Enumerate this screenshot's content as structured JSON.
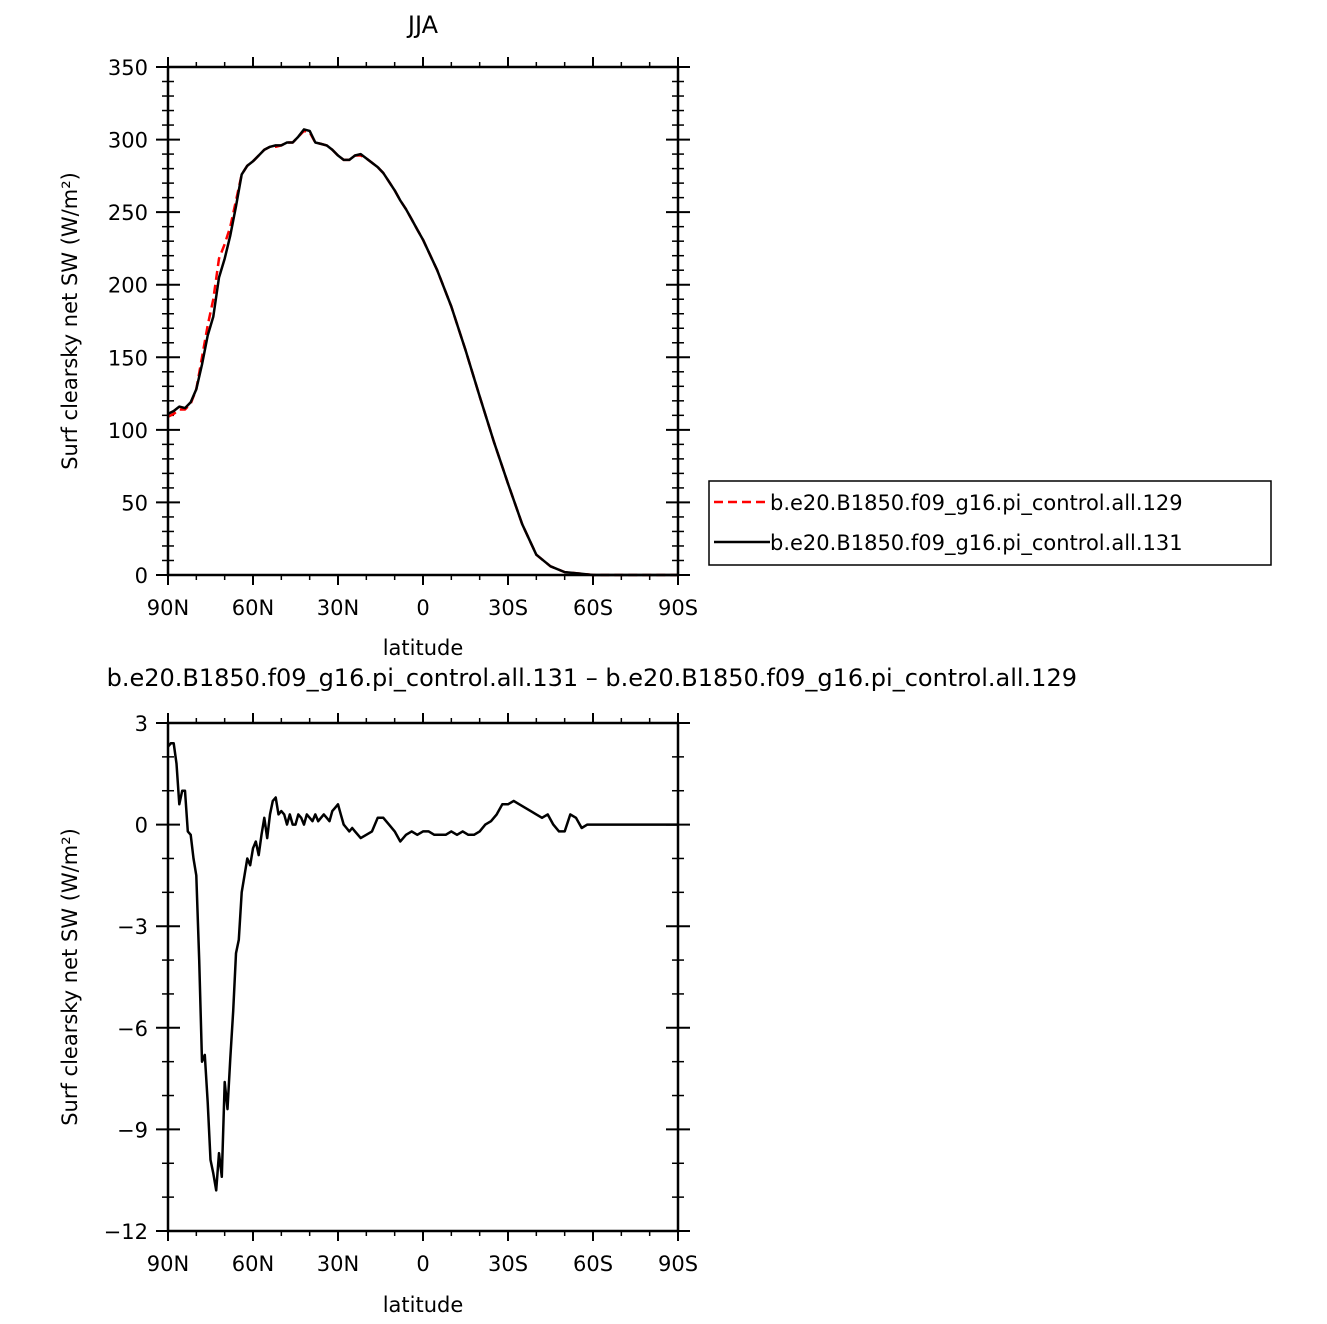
{
  "chart_data": [
    {
      "type": "line",
      "title": "JJA",
      "xlabel": "latitude",
      "ylabel": "Surf clearsky net SW (W/m²)",
      "xlim": [
        90,
        -90
      ],
      "ylim": [
        0,
        350
      ],
      "xticks": [
        90,
        60,
        30,
        0,
        -30,
        -60,
        -90
      ],
      "xtick_labels": [
        "90N",
        "60N",
        "30N",
        "0",
        "30S",
        "60S",
        "90S"
      ],
      "yticks": [
        0,
        50,
        100,
        150,
        200,
        250,
        300,
        350
      ],
      "ytick_labels": [
        "0",
        "50",
        "100",
        "150",
        "200",
        "250",
        "300",
        "350"
      ],
      "legend": "right",
      "series": [
        {
          "name": "b.e20.B1850.f09_g16.pi_control.all.129",
          "color": "#ff0000",
          "style": "dashed",
          "x": [
            90,
            88,
            86,
            84,
            82,
            80,
            78,
            76,
            74,
            72,
            70,
            68,
            66,
            64,
            62,
            60,
            58,
            56,
            54,
            52,
            50,
            48,
            46,
            44,
            42,
            40,
            38,
            36,
            34,
            32,
            30,
            28,
            26,
            24,
            22,
            20,
            18,
            16,
            14,
            12,
            10,
            8,
            6,
            4,
            2,
            0,
            -5,
            -10,
            -15,
            -20,
            -25,
            -30,
            -35,
            -40,
            -45,
            -50,
            -55,
            -60,
            -62,
            -64,
            -66,
            -68,
            -70,
            -75,
            -80,
            -85,
            -90
          ],
          "values": [
            109,
            111,
            114,
            114,
            118,
            128,
            150,
            172,
            190,
            218,
            228,
            240,
            258,
            276,
            282,
            285,
            289,
            293,
            295,
            295,
            296,
            298,
            298,
            302,
            306,
            305,
            298,
            297,
            296,
            293,
            289,
            286,
            286,
            289,
            289,
            287,
            284,
            281,
            277,
            271,
            265,
            258,
            252,
            245,
            238,
            231,
            210,
            185,
            155,
            123,
            92,
            63,
            35,
            14,
            6,
            2,
            1,
            0,
            0,
            0,
            0,
            0,
            0,
            0,
            0,
            0,
            0
          ]
        },
        {
          "name": "b.e20.B1850.f09_g16.pi_control.all.131",
          "color": "#000000",
          "style": "solid",
          "x": [
            90,
            88,
            86,
            84,
            82,
            80,
            78,
            76,
            74,
            72,
            70,
            68,
            66,
            64,
            62,
            60,
            58,
            56,
            54,
            52,
            50,
            48,
            46,
            44,
            42,
            40,
            38,
            36,
            34,
            32,
            30,
            28,
            26,
            24,
            22,
            20,
            18,
            16,
            14,
            12,
            10,
            8,
            6,
            4,
            2,
            0,
            -5,
            -10,
            -15,
            -20,
            -25,
            -30,
            -35,
            -40,
            -45,
            -50,
            -55,
            -60,
            -62,
            -64,
            -66,
            -68,
            -70,
            -75,
            -80,
            -85,
            -90
          ],
          "values": [
            111,
            113,
            116,
            115,
            119,
            128,
            145,
            165,
            178,
            205,
            218,
            234,
            254,
            276,
            282,
            285,
            289,
            293,
            295,
            296,
            296,
            298,
            298,
            302,
            307,
            306,
            298,
            297,
            296,
            293,
            289,
            286,
            286,
            289,
            290,
            287,
            284,
            281,
            277,
            271,
            265,
            258,
            252,
            245,
            238,
            231,
            210,
            185,
            155,
            123,
            92,
            63,
            35,
            14,
            6,
            2,
            1,
            0,
            0,
            0,
            0,
            0,
            0,
            0,
            0,
            0,
            0
          ]
        }
      ]
    },
    {
      "type": "line",
      "title": "b.e20.B1850.f09_g16.pi_control.all.131 – b.e20.B1850.f09_g16.pi_control.all.129",
      "xlabel": "latitude",
      "ylabel": "Surf clearsky net SW (W/m²)",
      "xlim": [
        90,
        -90
      ],
      "ylim": [
        -12,
        3
      ],
      "xticks": [
        90,
        60,
        30,
        0,
        -30,
        -60,
        -90
      ],
      "xtick_labels": [
        "90N",
        "60N",
        "30N",
        "0",
        "30S",
        "60S",
        "90S"
      ],
      "yticks": [
        -12,
        -9,
        -6,
        -3,
        0,
        3
      ],
      "ytick_labels": [
        "−12",
        "−9",
        "−6",
        "−3",
        "0",
        "3"
      ],
      "series": [
        {
          "color": "#000000",
          "style": "solid",
          "x": [
            90,
            89,
            88,
            87,
            86,
            85,
            84,
            83,
            82,
            81,
            80,
            79,
            78,
            77,
            76,
            75,
            74,
            73,
            72,
            71,
            70,
            69,
            68,
            67,
            66,
            65,
            64,
            63,
            62,
            61,
            60,
            59,
            58,
            57,
            56,
            55,
            54,
            53,
            52,
            51,
            50,
            49,
            48,
            47,
            46,
            45,
            44,
            43,
            42,
            41,
            40,
            39,
            38,
            37,
            36,
            35,
            34,
            33,
            32,
            31,
            30,
            29,
            28,
            27,
            26,
            25,
            24,
            22,
            20,
            18,
            16,
            14,
            12,
            10,
            8,
            6,
            4,
            2,
            0,
            -2,
            -4,
            -6,
            -8,
            -10,
            -12,
            -14,
            -16,
            -18,
            -20,
            -22,
            -24,
            -26,
            -28,
            -30,
            -32,
            -34,
            -36,
            -38,
            -40,
            -42,
            -44,
            -46,
            -48,
            -50,
            -52,
            -54,
            -56,
            -58,
            -60,
            -62,
            -63,
            -64,
            -66,
            -68,
            -70,
            -75,
            -80,
            -85,
            -90
          ],
          "values": [
            2.3,
            2.4,
            2.4,
            1.8,
            0.6,
            1.0,
            1.0,
            -0.2,
            -0.3,
            -1.0,
            -1.5,
            -4.0,
            -7.0,
            -6.8,
            -8.2,
            -9.9,
            -10.3,
            -10.8,
            -9.7,
            -10.4,
            -7.6,
            -8.4,
            -6.9,
            -5.5,
            -3.8,
            -3.4,
            -2.0,
            -1.5,
            -1.0,
            -1.2,
            -0.7,
            -0.5,
            -0.9,
            -0.3,
            0.2,
            -0.4,
            0.3,
            0.7,
            0.8,
            0.3,
            0.4,
            0.3,
            0.0,
            0.3,
            0.0,
            0.0,
            0.3,
            0.2,
            0.0,
            0.3,
            0.2,
            0.1,
            0.3,
            0.1,
            0.2,
            0.3,
            0.2,
            0.1,
            0.4,
            0.5,
            0.6,
            0.3,
            0.0,
            -0.1,
            -0.2,
            -0.1,
            -0.2,
            -0.4,
            -0.3,
            -0.2,
            0.2,
            0.2,
            0.0,
            -0.2,
            -0.5,
            -0.3,
            -0.2,
            -0.3,
            -0.2,
            -0.2,
            -0.3,
            -0.3,
            -0.3,
            -0.2,
            -0.3,
            -0.2,
            -0.3,
            -0.3,
            -0.2,
            0.0,
            0.1,
            0.3,
            0.6,
            0.6,
            0.7,
            0.6,
            0.5,
            0.4,
            0.3,
            0.2,
            0.3,
            0.0,
            -0.2,
            -0.2,
            0.3,
            0.2,
            -0.1,
            0.0,
            0.0,
            0.0,
            0.0,
            0.0,
            0.0,
            0.0,
            0.0,
            0.0,
            0.0,
            0.0,
            0.0
          ]
        }
      ]
    }
  ]
}
